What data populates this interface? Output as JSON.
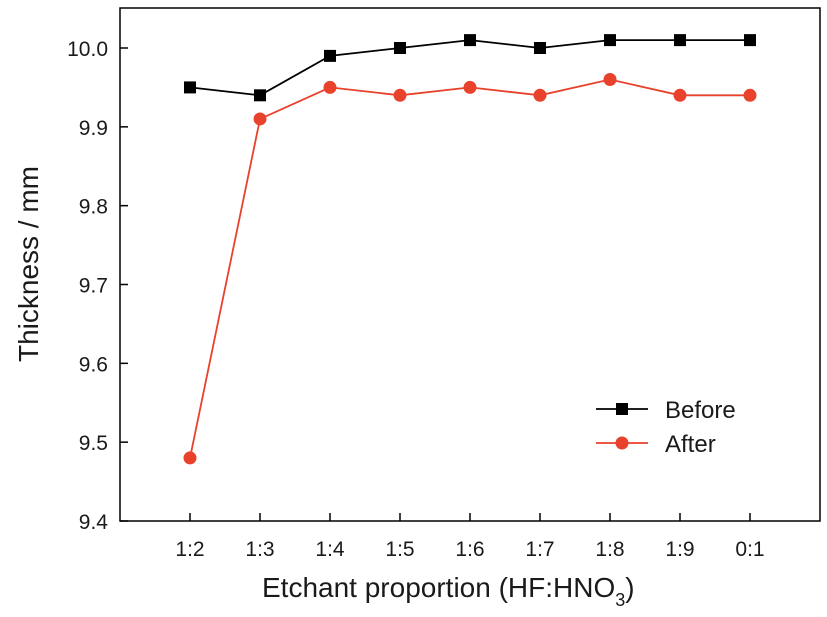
{
  "chart_data": {
    "type": "line",
    "categories": [
      "1:2",
      "1:3",
      "1:4",
      "1:5",
      "1:6",
      "1:7",
      "1:8",
      "1:9",
      "0:1"
    ],
    "series": [
      {
        "name": "Before",
        "values": [
          9.95,
          9.94,
          9.99,
          10.0,
          10.01,
          10.0,
          10.01,
          10.01,
          10.01
        ],
        "color": "#000000",
        "marker": "square"
      },
      {
        "name": "After",
        "values": [
          9.48,
          9.91,
          9.95,
          9.94,
          9.95,
          9.94,
          9.96,
          9.94,
          9.94
        ],
        "color": "#e8412c",
        "marker": "circle"
      }
    ],
    "ylim": [
      9.4,
      10.05
    ],
    "yticks": [
      "9.4",
      "9.5",
      "9.6",
      "9.7",
      "9.8",
      "9.9",
      "10.0"
    ],
    "ylabel": "Thickness / mm",
    "xlabel": {
      "main": "Etchant proportion (HF:HNO",
      "subscript": "3",
      "suffix": ")"
    },
    "legend_placement": "lower-right",
    "grid": false
  }
}
